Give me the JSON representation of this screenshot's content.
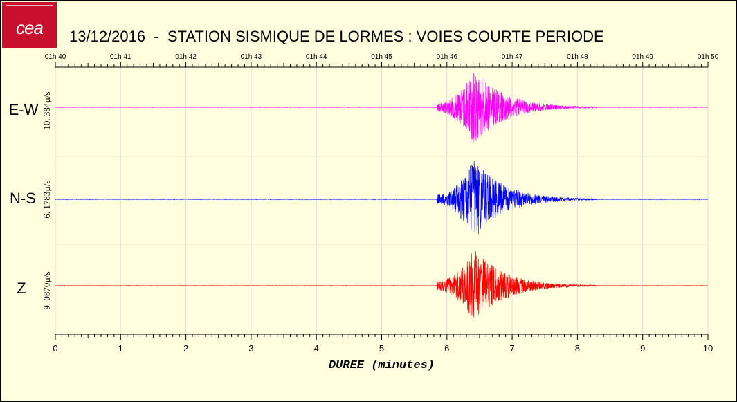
{
  "title": "13/12/2016  -  STATION SISMIQUE DE LORMES : VOIES COURTE PERIODE",
  "logo_text": "cea",
  "chart_data": {
    "type": "line",
    "title": "13/12/2016  -  STATION SISMIQUE DE LORMES : VOIES COURTE PERIODE",
    "xlabel": "DUREE  (minutes)",
    "xlim": [
      0,
      10
    ],
    "x_ticks": [
      "0",
      "1",
      "2",
      "3",
      "4",
      "5",
      "6",
      "7",
      "8",
      "9",
      "10"
    ],
    "time_ticks": [
      "01h 40",
      "01h 41",
      "01h 42",
      "01h 43",
      "01h 44",
      "01h 45",
      "01h 46",
      "01h 47",
      "01h 48",
      "01h 49",
      "01h 50"
    ],
    "grid": true,
    "series": [
      {
        "name": "E-W",
        "scale_label": "10. 384µ/s",
        "color": "#ff00ff",
        "event_onset_min": 5.85,
        "peak_time_min": 6.42,
        "peak_amplitude_fraction": 0.95,
        "coda_end_min": 8.3
      },
      {
        "name": "N-S",
        "scale_label": "6. 1783µ/s",
        "color": "#0000ff",
        "event_onset_min": 5.85,
        "peak_time_min": 6.42,
        "peak_amplitude_fraction": 0.95,
        "coda_end_min": 8.3
      },
      {
        "name": "Z",
        "scale_label": "9. 0870µ/s",
        "color": "#ff0000",
        "event_onset_min": 5.85,
        "peak_time_min": 6.42,
        "peak_amplitude_fraction": 0.95,
        "coda_end_min": 8.3
      }
    ]
  },
  "colors": {
    "background": "#ffffe0",
    "logo": "#c8102e",
    "grid": "#dcdcdc"
  }
}
